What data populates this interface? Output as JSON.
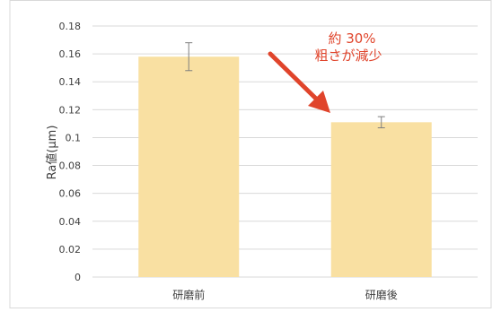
{
  "chart_data": {
    "type": "bar",
    "categories": [
      "研磨前",
      "研磨後"
    ],
    "values": [
      0.158,
      0.111
    ],
    "error": [
      0.01,
      0.004
    ],
    "ylabel": "Ra値(μm)",
    "ylim": [
      0,
      0.18
    ],
    "yticks": [
      "0",
      "0.02",
      "0.04",
      "0.06",
      "0.08",
      "0.1",
      "0.12",
      "0.14",
      "0.16",
      "0.18"
    ],
    "grid": true,
    "annotation": {
      "line1": "約 30%",
      "line2": "粗さが減少"
    },
    "colors": {
      "bar": "#F9E0A2",
      "arrow": "#E0442B",
      "annotation_text": "#E0442B",
      "error_bar": "#7F7F7F",
      "grid": "#D9D9D9"
    }
  }
}
